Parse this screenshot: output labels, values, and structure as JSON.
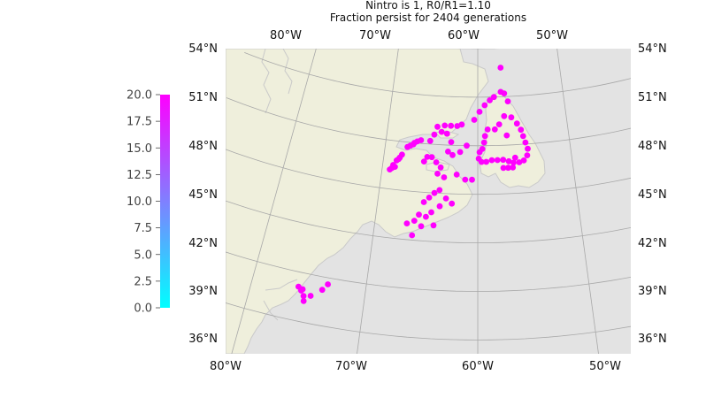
{
  "title": {
    "line1": "Nintro is 1, R0/R1=1.10",
    "line2": "Fraction persist for 2404 generations"
  },
  "colors": {
    "land": "#efefdc",
    "ocean": "#e3e3e3",
    "coast": "#c9c9c9",
    "grid": "#a8a8a8",
    "points": "#ff00ff",
    "colorbar_low": "#00ffff",
    "colorbar_high": "#ff00ff"
  },
  "map": {
    "projection": "conic",
    "lon_range": [
      -80,
      -48
    ],
    "lat_range": [
      35,
      54
    ],
    "top_lon_labels": [
      "80°W",
      "70°W",
      "60°W",
      "50°W"
    ],
    "bottom_lon_labels": [
      "80°W",
      "70°W",
      "60°W",
      "50°W"
    ],
    "lat_labels": [
      "54°N",
      "51°N",
      "48°N",
      "45°N",
      "42°N",
      "39°N",
      "36°N"
    ],
    "gridlines": {
      "lons": [
        -80,
        -70,
        -60,
        -50
      ],
      "lats": [
        54,
        51,
        48,
        45,
        42,
        39,
        36
      ]
    }
  },
  "colorbar": {
    "min": 0,
    "max": 20,
    "ticks": [
      "0.0",
      "2.5",
      "5.0",
      "7.5",
      "10.0",
      "12.5",
      "15.0",
      "17.5",
      "20.0"
    ]
  },
  "points": {
    "value": 20,
    "locations": [
      [
        -75.6,
        37.9
      ],
      [
        -75.3,
        37.6
      ],
      [
        -75.2,
        37.3
      ],
      [
        -74.7,
        37.7
      ],
      [
        -73.8,
        38.2
      ],
      [
        -73.4,
        38.6
      ],
      [
        -75.9,
        38.1
      ],
      [
        -75.5,
        38.0
      ],
      [
        -69.2,
        46.2
      ],
      [
        -68.9,
        46.5
      ],
      [
        -68.6,
        46.8
      ],
      [
        -68.3,
        47.0
      ],
      [
        -68.7,
        46.4
      ],
      [
        -68.1,
        47.2
      ],
      [
        -69.0,
        46.3
      ],
      [
        -68.4,
        46.9
      ],
      [
        -67.6,
        47.7
      ],
      [
        -67.0,
        47.9
      ],
      [
        -66.6,
        48.1
      ],
      [
        -66.2,
        48.2
      ],
      [
        -67.3,
        47.8
      ],
      [
        -66.9,
        48.0
      ],
      [
        -65.2,
        48.2
      ],
      [
        -64.8,
        48.6
      ],
      [
        -64.5,
        49.1
      ],
      [
        -63.7,
        49.2
      ],
      [
        -63.0,
        49.2
      ],
      [
        -62.3,
        49.2
      ],
      [
        -61.8,
        49.3
      ],
      [
        -63.4,
        48.7
      ],
      [
        -62.9,
        48.2
      ],
      [
        -64.0,
        48.8
      ],
      [
        -60.4,
        49.6
      ],
      [
        -59.8,
        50.1
      ],
      [
        -59.2,
        50.5
      ],
      [
        -58.6,
        50.8
      ],
      [
        -58.1,
        51.0
      ],
      [
        -57.3,
        51.3
      ],
      [
        -56.9,
        51.2
      ],
      [
        -56.5,
        50.7
      ],
      [
        -57.2,
        52.8
      ],
      [
        -57.0,
        49.8
      ],
      [
        -56.2,
        49.7
      ],
      [
        -55.6,
        49.3
      ],
      [
        -55.2,
        48.9
      ],
      [
        -55.0,
        48.5
      ],
      [
        -54.8,
        48.1
      ],
      [
        -54.6,
        47.7
      ],
      [
        -54.7,
        47.3
      ],
      [
        -55.1,
        47.0
      ],
      [
        -55.6,
        46.9
      ],
      [
        -56.0,
        47.2
      ],
      [
        -57.6,
        49.3
      ],
      [
        -58.1,
        49.0
      ],
      [
        -56.8,
        48.6
      ],
      [
        -58.9,
        49.0
      ],
      [
        -59.2,
        48.6
      ],
      [
        -59.3,
        48.2
      ],
      [
        -59.5,
        47.8
      ],
      [
        -59.8,
        47.6
      ],
      [
        -59.9,
        47.2
      ],
      [
        -59.6,
        47.0
      ],
      [
        -59.1,
        47.0
      ],
      [
        -58.5,
        47.1
      ],
      [
        -57.9,
        47.1
      ],
      [
        -57.3,
        47.1
      ],
      [
        -56.7,
        47.0
      ],
      [
        -56.2,
        46.9
      ],
      [
        -56.3,
        46.6
      ],
      [
        -56.8,
        46.6
      ],
      [
        -57.3,
        46.6
      ],
      [
        -63.9,
        46.6
      ],
      [
        -64.4,
        46.9
      ],
      [
        -64.9,
        47.2
      ],
      [
        -65.4,
        47.2
      ],
      [
        -65.7,
        46.9
      ],
      [
        -64.2,
        46.2
      ],
      [
        -63.5,
        46.0
      ],
      [
        -62.2,
        46.2
      ],
      [
        -61.3,
        45.9
      ],
      [
        -60.6,
        45.9
      ],
      [
        -65.4,
        44.4
      ],
      [
        -64.9,
        44.7
      ],
      [
        -64.4,
        45.0
      ],
      [
        -63.9,
        45.2
      ],
      [
        -63.2,
        44.7
      ],
      [
        -62.6,
        44.4
      ],
      [
        -63.8,
        44.2
      ],
      [
        -64.6,
        43.8
      ],
      [
        -65.1,
        43.5
      ],
      [
        -65.8,
        43.6
      ],
      [
        -66.2,
        43.2
      ],
      [
        -66.9,
        43.0
      ],
      [
        -66.3,
        42.3
      ],
      [
        -64.3,
        43.0
      ],
      [
        -65.5,
        42.9
      ],
      [
        -63.2,
        47.6
      ],
      [
        -62.7,
        47.4
      ],
      [
        -61.9,
        47.6
      ],
      [
        -61.2,
        48.0
      ]
    ]
  }
}
